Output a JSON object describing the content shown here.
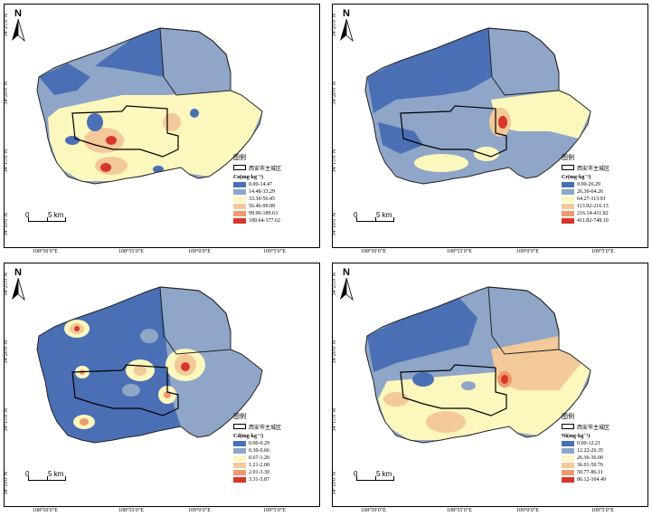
{
  "legend_title": "图例",
  "boundary_label": "西安市主城区",
  "north_label": "N",
  "scale": {
    "zero": "0",
    "dist": "5 km"
  },
  "lon_labels": [
    "108°50′0″E",
    "108°55′0″E",
    "109°0′0″E",
    "109°5′0″E"
  ],
  "lat_labels": [
    "34°25′0″N",
    "34°20′0″N",
    "34°15′0″N",
    "34°10′0″N"
  ],
  "colors": [
    "#4a6fb5",
    "#8fa6c8",
    "#fbf7bd",
    "#f3c99a",
    "#ee9a6e",
    "#d7362a"
  ],
  "panels": [
    {
      "id": "cu",
      "unit": "Cu(mg·kg⁻¹)",
      "classes": [
        "0.00-14.47",
        "14.48-33.29",
        "33.30-56.45",
        "56.46-99.89",
        "99.90-189.63",
        "189.64-377.62"
      ]
    },
    {
      "id": "cr",
      "unit": "Cr(mg·kg⁻¹)",
      "classes": [
        "0.00-26.29",
        "26.30-64.26",
        "64.27-113.91",
        "113.92-216.13",
        "216.14-411.82",
        "411.82-748.10"
      ]
    },
    {
      "id": "cd",
      "unit": "Cd(mg·kg⁻¹)",
      "classes": [
        "0.00-0.29",
        "0.30-0.66",
        "0.67-1.20",
        "1.21-2.00",
        "2.01-3.30",
        "3.31-5.87"
      ]
    },
    {
      "id": "ni",
      "unit": "Ni(mg·kg⁻¹)",
      "classes": [
        "0.00-12.21",
        "12.22-26.35",
        "26.36-36.00",
        "36.01-50.76",
        "50.77-86.11",
        "86.12-164.49"
      ]
    }
  ]
}
